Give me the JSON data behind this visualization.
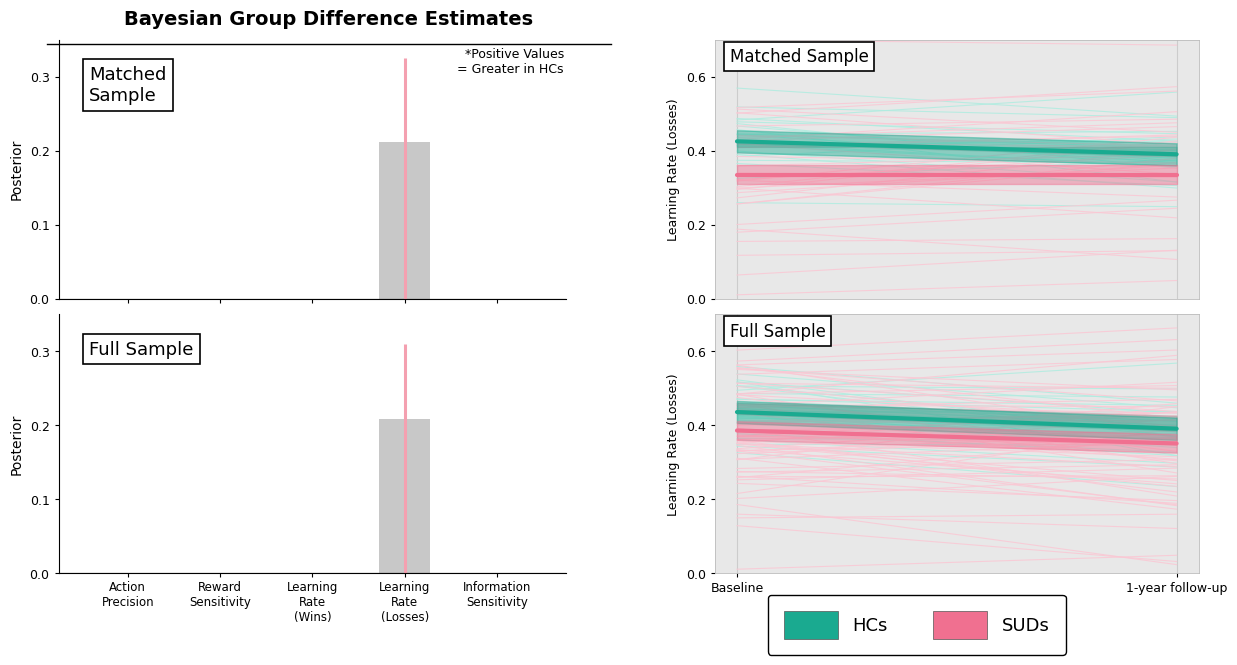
{
  "title": "Bayesian Group Difference Estimates",
  "annotation": "*Positive Values\n= Greater in HCs",
  "bar_categories": [
    "Action\nPrecision",
    "Reward\nSensitivity",
    "Learning\nRate\n(Wins)",
    "Learning\nRate\n(Losses)",
    "Information\nSensitivity"
  ],
  "matched_bar_values": [
    0.0,
    0.0,
    0.0,
    0.212,
    0.0
  ],
  "full_bar_values": [
    0.0,
    0.0,
    0.0,
    0.208,
    0.0
  ],
  "matched_error_high": [
    0.0,
    0.0,
    0.0,
    0.325,
    0.0
  ],
  "full_error_high": [
    0.0,
    0.0,
    0.0,
    0.31,
    0.0
  ],
  "bar_color": "#c8c8c8",
  "error_color": "#f4a0b0",
  "bar_ylabel": "Posterior",
  "bar_ylim": [
    0.0,
    0.35
  ],
  "bar_yticks": [
    0.0,
    0.1,
    0.2,
    0.3
  ],
  "matched_label": "Matched\nSample",
  "full_label": "Full Sample",
  "hc_color": "#1aaa90",
  "sud_color": "#f07090",
  "hc_color_light": "#b0ece0",
  "sud_color_light": "#fac8d4",
  "spaghetti_bg": "#e8e8e8",
  "spaghetti_ylim": [
    0.0,
    0.7
  ],
  "spaghetti_yticks": [
    0.0,
    0.2,
    0.4,
    0.6
  ],
  "spaghetti_ylabel": "Learning Rate (Losses)",
  "spaghetti_xlabel_baseline": "Baseline",
  "spaghetti_xlabel_followup": "1-year follow-up",
  "matched_hc_baseline_mean": 0.425,
  "matched_hc_followup_mean": 0.39,
  "matched_sud_baseline_mean": 0.335,
  "matched_sud_followup_mean": 0.335,
  "full_hc_baseline_mean": 0.435,
  "full_hc_followup_mean": 0.39,
  "full_sud_baseline_mean": 0.385,
  "full_sud_followup_mean": 0.35,
  "n_hc_matched": 25,
  "n_sud_matched": 35,
  "n_hc_full": 30,
  "n_sud_full": 65,
  "legend_hc": "HCs",
  "legend_sud": "SUDs"
}
